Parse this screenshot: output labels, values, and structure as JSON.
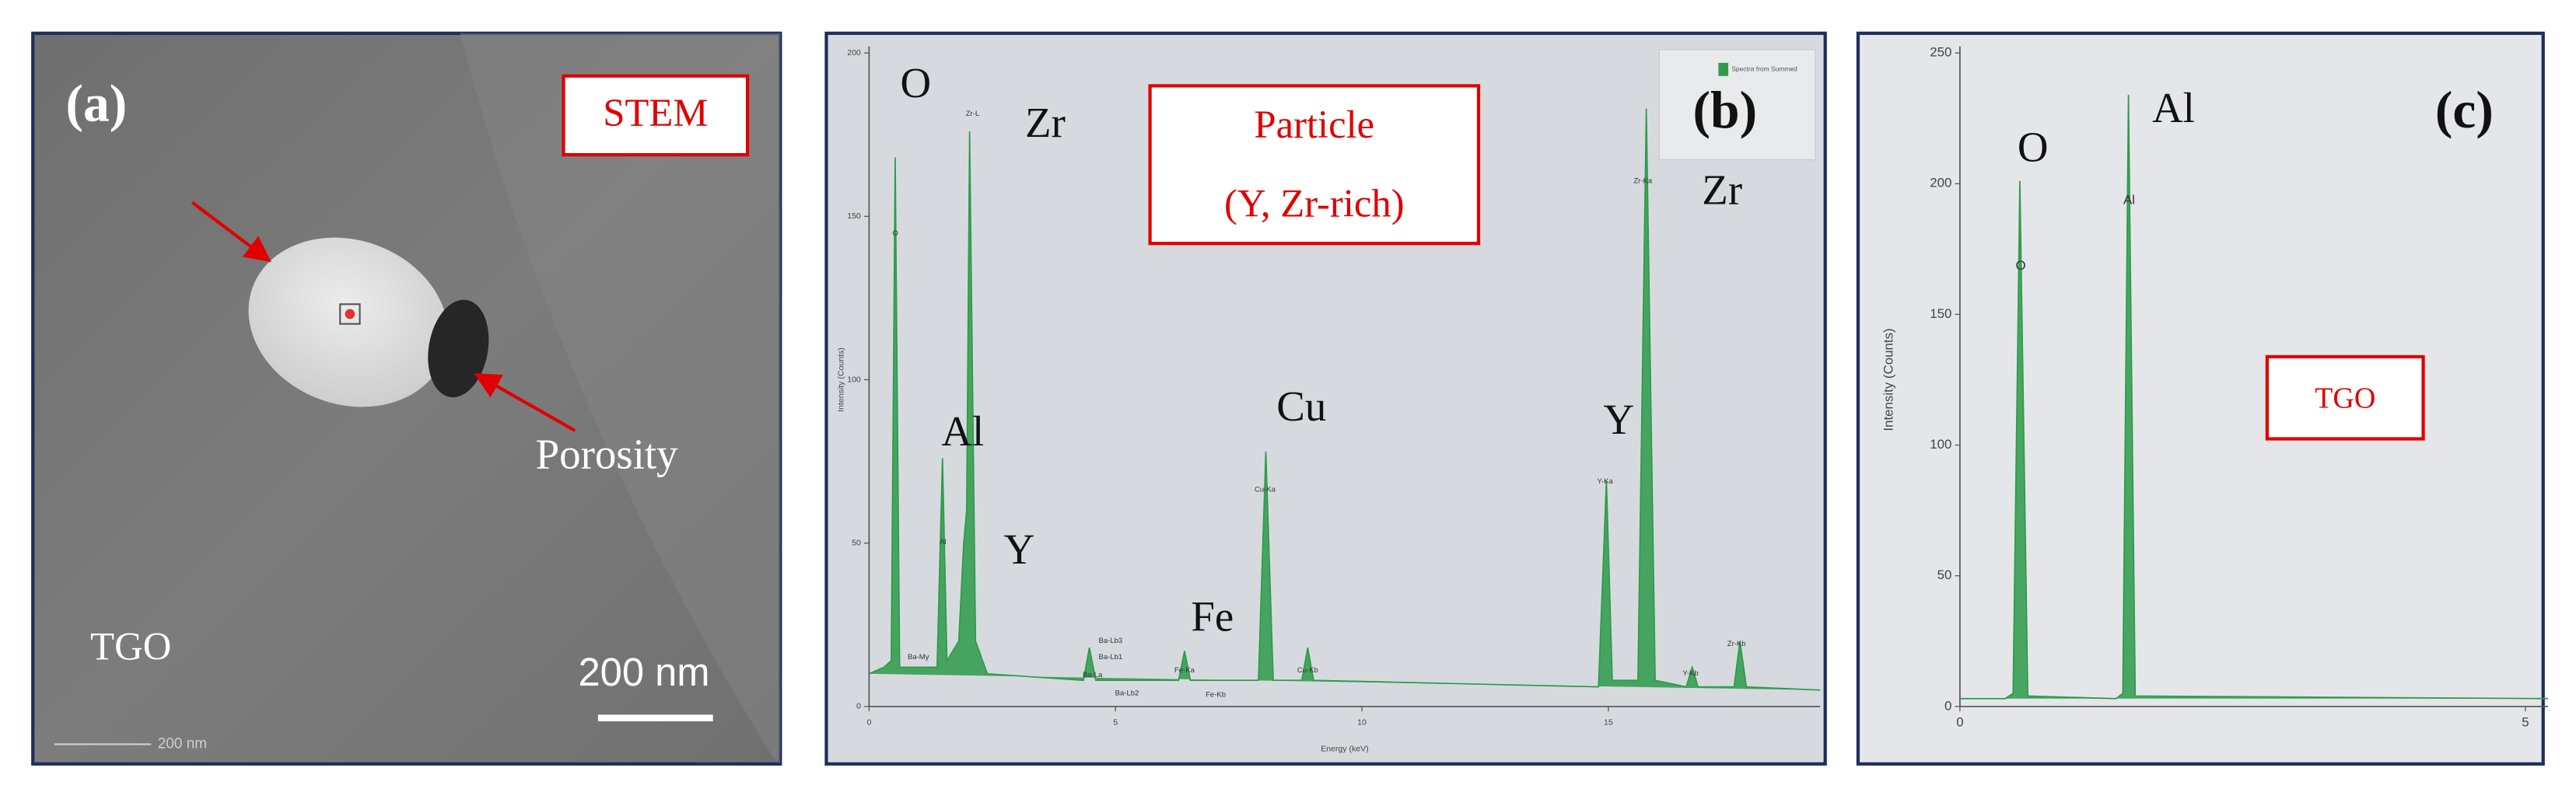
{
  "image_panel": {
    "label": "(a)",
    "box_label": "STEM",
    "annotations": [
      "Porosity",
      "TGO"
    ],
    "scale_bar": "200 nm",
    "scale_bar_small": "200 nm"
  },
  "chart_data": [
    {
      "type": "area",
      "panel_label": "(b)",
      "box_label": [
        "Particle",
        "(Y, Zr-rich)"
      ],
      "x": [
        0,
        0.3,
        0.45,
        0.53,
        0.62,
        1.38,
        1.49,
        1.58,
        1.82,
        1.92,
        1.98,
        2.04,
        2.16,
        2.4,
        4.35,
        4.47,
        4.6,
        6.28,
        6.4,
        6.52,
        7.9,
        8.05,
        8.2,
        8.78,
        8.9,
        9.02,
        14.8,
        14.96,
        15.08,
        15.6,
        15.77,
        15.95,
        16.58,
        16.7,
        16.82,
        17.55,
        17.67,
        17.8,
        19.3
      ],
      "series": [
        {
          "name": "Spectra from Summed",
          "color": "#2e9a4a",
          "values": [
            10,
            12,
            14,
            168,
            12,
            12,
            76,
            14,
            20,
            50,
            60,
            176,
            20,
            10,
            8,
            18,
            8,
            8,
            17,
            8,
            8,
            78,
            8,
            8,
            18,
            8,
            6,
            69,
            8,
            8,
            183,
            8,
            6,
            12,
            6,
            6,
            20,
            6,
            5
          ]
        }
      ],
      "xlim": [
        0,
        19.3
      ],
      "xticks": [
        0,
        5,
        10,
        15
      ],
      "ylim": [
        0,
        200
      ],
      "yticks": [
        0,
        50,
        100,
        150,
        200
      ],
      "xlabel": "Energy (keV)",
      "ylabel": "Intensity (Counts)",
      "element_labels": [
        "O",
        "Zr",
        "Al",
        "Y",
        "Cu",
        "Fe",
        "Y",
        "Zr"
      ],
      "peak_labels": [
        "O",
        "Zr-L",
        "Al",
        "Cu-Ka",
        "Cu-Kb",
        "Fe-Ka",
        "Fe-Kb",
        "Ba-Lb3",
        "Ba-Lb1",
        "Ba-La",
        "Ba-Lb2",
        "Ba-My",
        "Y-Ka",
        "Zr-Ka",
        "Y-Kb",
        "Zr-Kb"
      ]
    },
    {
      "type": "area",
      "panel_label": "(c)",
      "box_label": [
        "TGO"
      ],
      "x": [
        0,
        0.4,
        0.47,
        0.53,
        0.6,
        1.38,
        1.44,
        1.49,
        1.55,
        5.2
      ],
      "series": [
        {
          "color": "#2e9a4a",
          "values": [
            3,
            3,
            5,
            201,
            4,
            3,
            5,
            234,
            4,
            3
          ]
        }
      ],
      "xlim": [
        0,
        5.2
      ],
      "xticks": [
        0,
        5
      ],
      "ylim": [
        0,
        250
      ],
      "yticks": [
        0,
        50,
        100,
        150,
        200,
        250
      ],
      "ylabel": "Intensity (Counts)",
      "element_labels": [
        "O",
        "Al"
      ],
      "peak_labels": [
        "O",
        "Al"
      ]
    }
  ]
}
